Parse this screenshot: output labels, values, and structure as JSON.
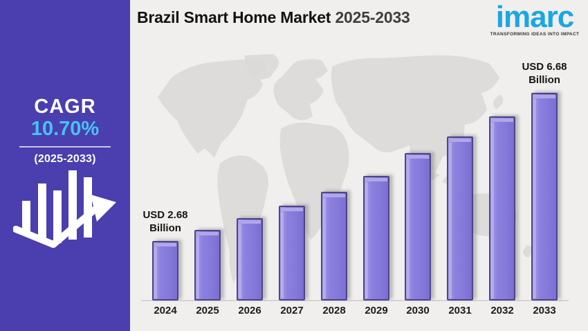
{
  "sidebar": {
    "cagr_label": "CAGR",
    "cagr_value": "10.70%",
    "period": "(2025-2033)"
  },
  "header": {
    "title_main": "Brazil Smart Home Market",
    "title_years": "2025-2033"
  },
  "logo": {
    "name": "imarc",
    "tagline": "TRANSFORMING IDEAS INTO IMPACT"
  },
  "colors": {
    "background": "#f0efed",
    "sidebar_bg": "#4b3eae",
    "cagr_accent": "#45c4f3",
    "bar_fill": "#8478d9",
    "bar_border": "#4f4586",
    "bar_highlight": "#b0a7eb",
    "logo_blue": "#1ba6e3",
    "map_gray": "#dad9d7"
  },
  "chart_data": {
    "type": "bar",
    "title": "Brazil Smart Home Market 2025-2033",
    "unit": "USD Billion",
    "categories": [
      "2024",
      "2025",
      "2026",
      "2027",
      "2028",
      "2029",
      "2030",
      "2031",
      "2032",
      "2033"
    ],
    "values": [
      2.68,
      2.97,
      3.3,
      3.64,
      4.0,
      4.44,
      5.05,
      5.5,
      6.05,
      6.68
    ],
    "annotations": [
      {
        "category": "2024",
        "lines": [
          "USD 2.68",
          "Billion"
        ]
      },
      {
        "category": "2033",
        "lines": [
          "USD 6.68",
          "Billion"
        ]
      }
    ],
    "xlabel": "",
    "ylabel": "",
    "ylim": [
      0,
      7
    ],
    "y_axis_visible": false,
    "grid": false,
    "legend": false
  }
}
